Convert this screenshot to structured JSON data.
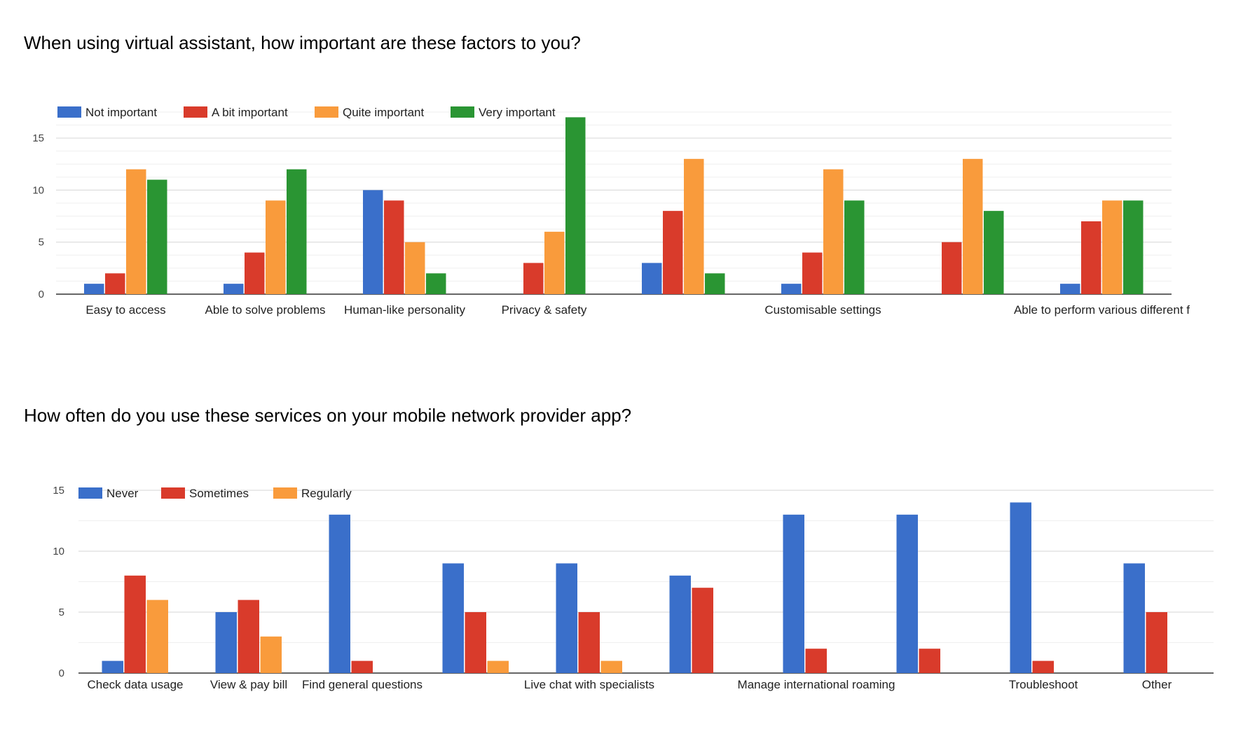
{
  "chart_data": [
    {
      "type": "bar",
      "title": "When using virtual assistant, how important are these factors to you?",
      "categories": [
        "Easy to access",
        "Able to solve problems",
        "Human-like personality",
        "Privacy & safety",
        "",
        "Customisable settings",
        "",
        "Able to perform various different f"
      ],
      "series": [
        {
          "name": "Not important",
          "color": "#3a6fca",
          "values": [
            1,
            1,
            10,
            0,
            3,
            1,
            0,
            1
          ]
        },
        {
          "name": "A bit important",
          "color": "#d93b2b",
          "values": [
            2,
            4,
            9,
            3,
            8,
            4,
            5,
            7
          ]
        },
        {
          "name": "Quite important",
          "color": "#f99b3c",
          "values": [
            12,
            9,
            5,
            6,
            13,
            12,
            13,
            9
          ]
        },
        {
          "name": "Very important",
          "color": "#2a9533",
          "values": [
            11,
            12,
            2,
            17,
            2,
            9,
            8,
            9
          ]
        }
      ],
      "yticks": [
        0,
        5,
        10,
        15
      ],
      "ylim": [
        0,
        17.5
      ],
      "grid": true,
      "legend": "top-left"
    },
    {
      "type": "bar",
      "title": "How often do you use these services on your mobile network provider app?",
      "categories": [
        "Check data usage",
        "View & pay bill",
        "Find general questions",
        "",
        "Live chat with specialists",
        "",
        "Manage international roaming",
        "",
        "Troubleshoot",
        "Other"
      ],
      "series": [
        {
          "name": "Never",
          "color": "#3a6fca",
          "values": [
            1,
            5,
            13,
            9,
            9,
            8,
            13,
            13,
            14,
            9
          ]
        },
        {
          "name": "Sometimes",
          "color": "#d93b2b",
          "values": [
            8,
            6,
            1,
            5,
            5,
            7,
            2,
            2,
            1,
            5
          ]
        },
        {
          "name": "Regularly",
          "color": "#f99b3c",
          "values": [
            6,
            3,
            0,
            1,
            1,
            0,
            0,
            0,
            0,
            0
          ]
        }
      ],
      "yticks": [
        0,
        5,
        10,
        15
      ],
      "ylim": [
        0,
        15
      ],
      "grid": true,
      "legend": "top-left"
    }
  ]
}
